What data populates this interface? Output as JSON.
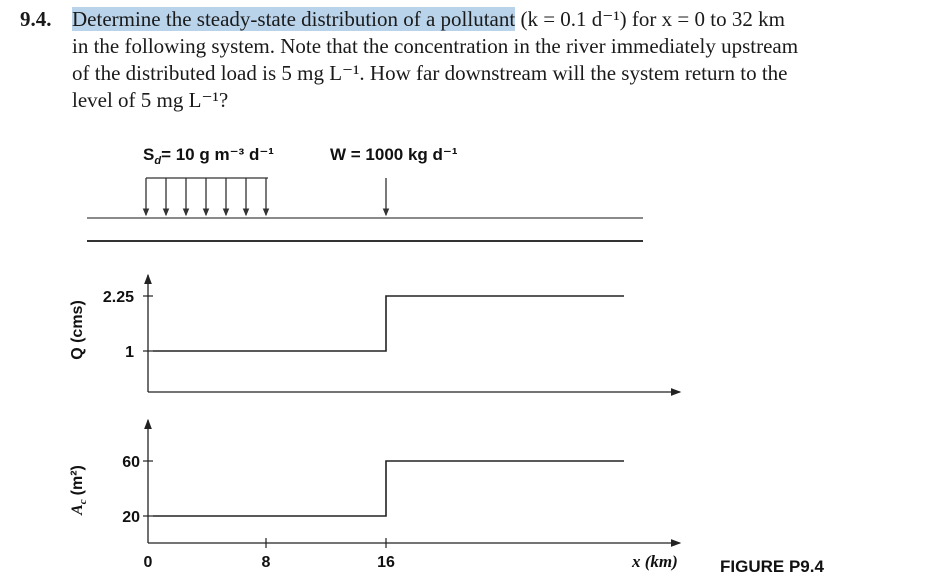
{
  "problem": {
    "number": "9.4.",
    "line1_highlight": "Determine the steady-state distribution of a pollutant",
    "line1_rest": "(k = 0.1 d⁻¹) for x = 0 to 32 km",
    "line2": "in the following system. Note that the concentration in the river immediately upstream",
    "line3": "of the distributed load is 5 mg L⁻¹. How far downstream will the system return to the",
    "line4": "level of 5 mg L⁻¹?"
  },
  "figure": {
    "sd_label": "S",
    "sd_sub": "d",
    "sd_value": "= 10 g m⁻³ d⁻¹",
    "w_label": "W = 1000 kg d⁻¹",
    "q_axis_label": "Q (cms)",
    "ac_axis_label": "A",
    "ac_axis_sub": "c",
    "ac_axis_unit": "(m²)",
    "q_ticks": [
      "2.25",
      "1"
    ],
    "ac_ticks": [
      "60",
      "20"
    ],
    "x_ticks": [
      "0",
      "8",
      "16"
    ],
    "x_label": "x (km)",
    "caption": "FIGURE P9.4"
  },
  "chart_data": [
    {
      "type": "line",
      "ylabel": "Q (cms)",
      "x": [
        0,
        16,
        16,
        32
      ],
      "series": [
        {
          "values": [
            1,
            1,
            2.25,
            2.25
          ]
        }
      ],
      "yticks": [
        1,
        2.25
      ],
      "step_at_x": 16
    },
    {
      "type": "line",
      "xlabel": "x (km)",
      "ylabel": "Ac (m²)",
      "x": [
        0,
        16,
        16,
        32
      ],
      "series": [
        {
          "values": [
            20,
            20,
            60,
            60
          ]
        }
      ],
      "yticks": [
        20,
        60
      ],
      "xticks": [
        0,
        8,
        16
      ]
    }
  ]
}
